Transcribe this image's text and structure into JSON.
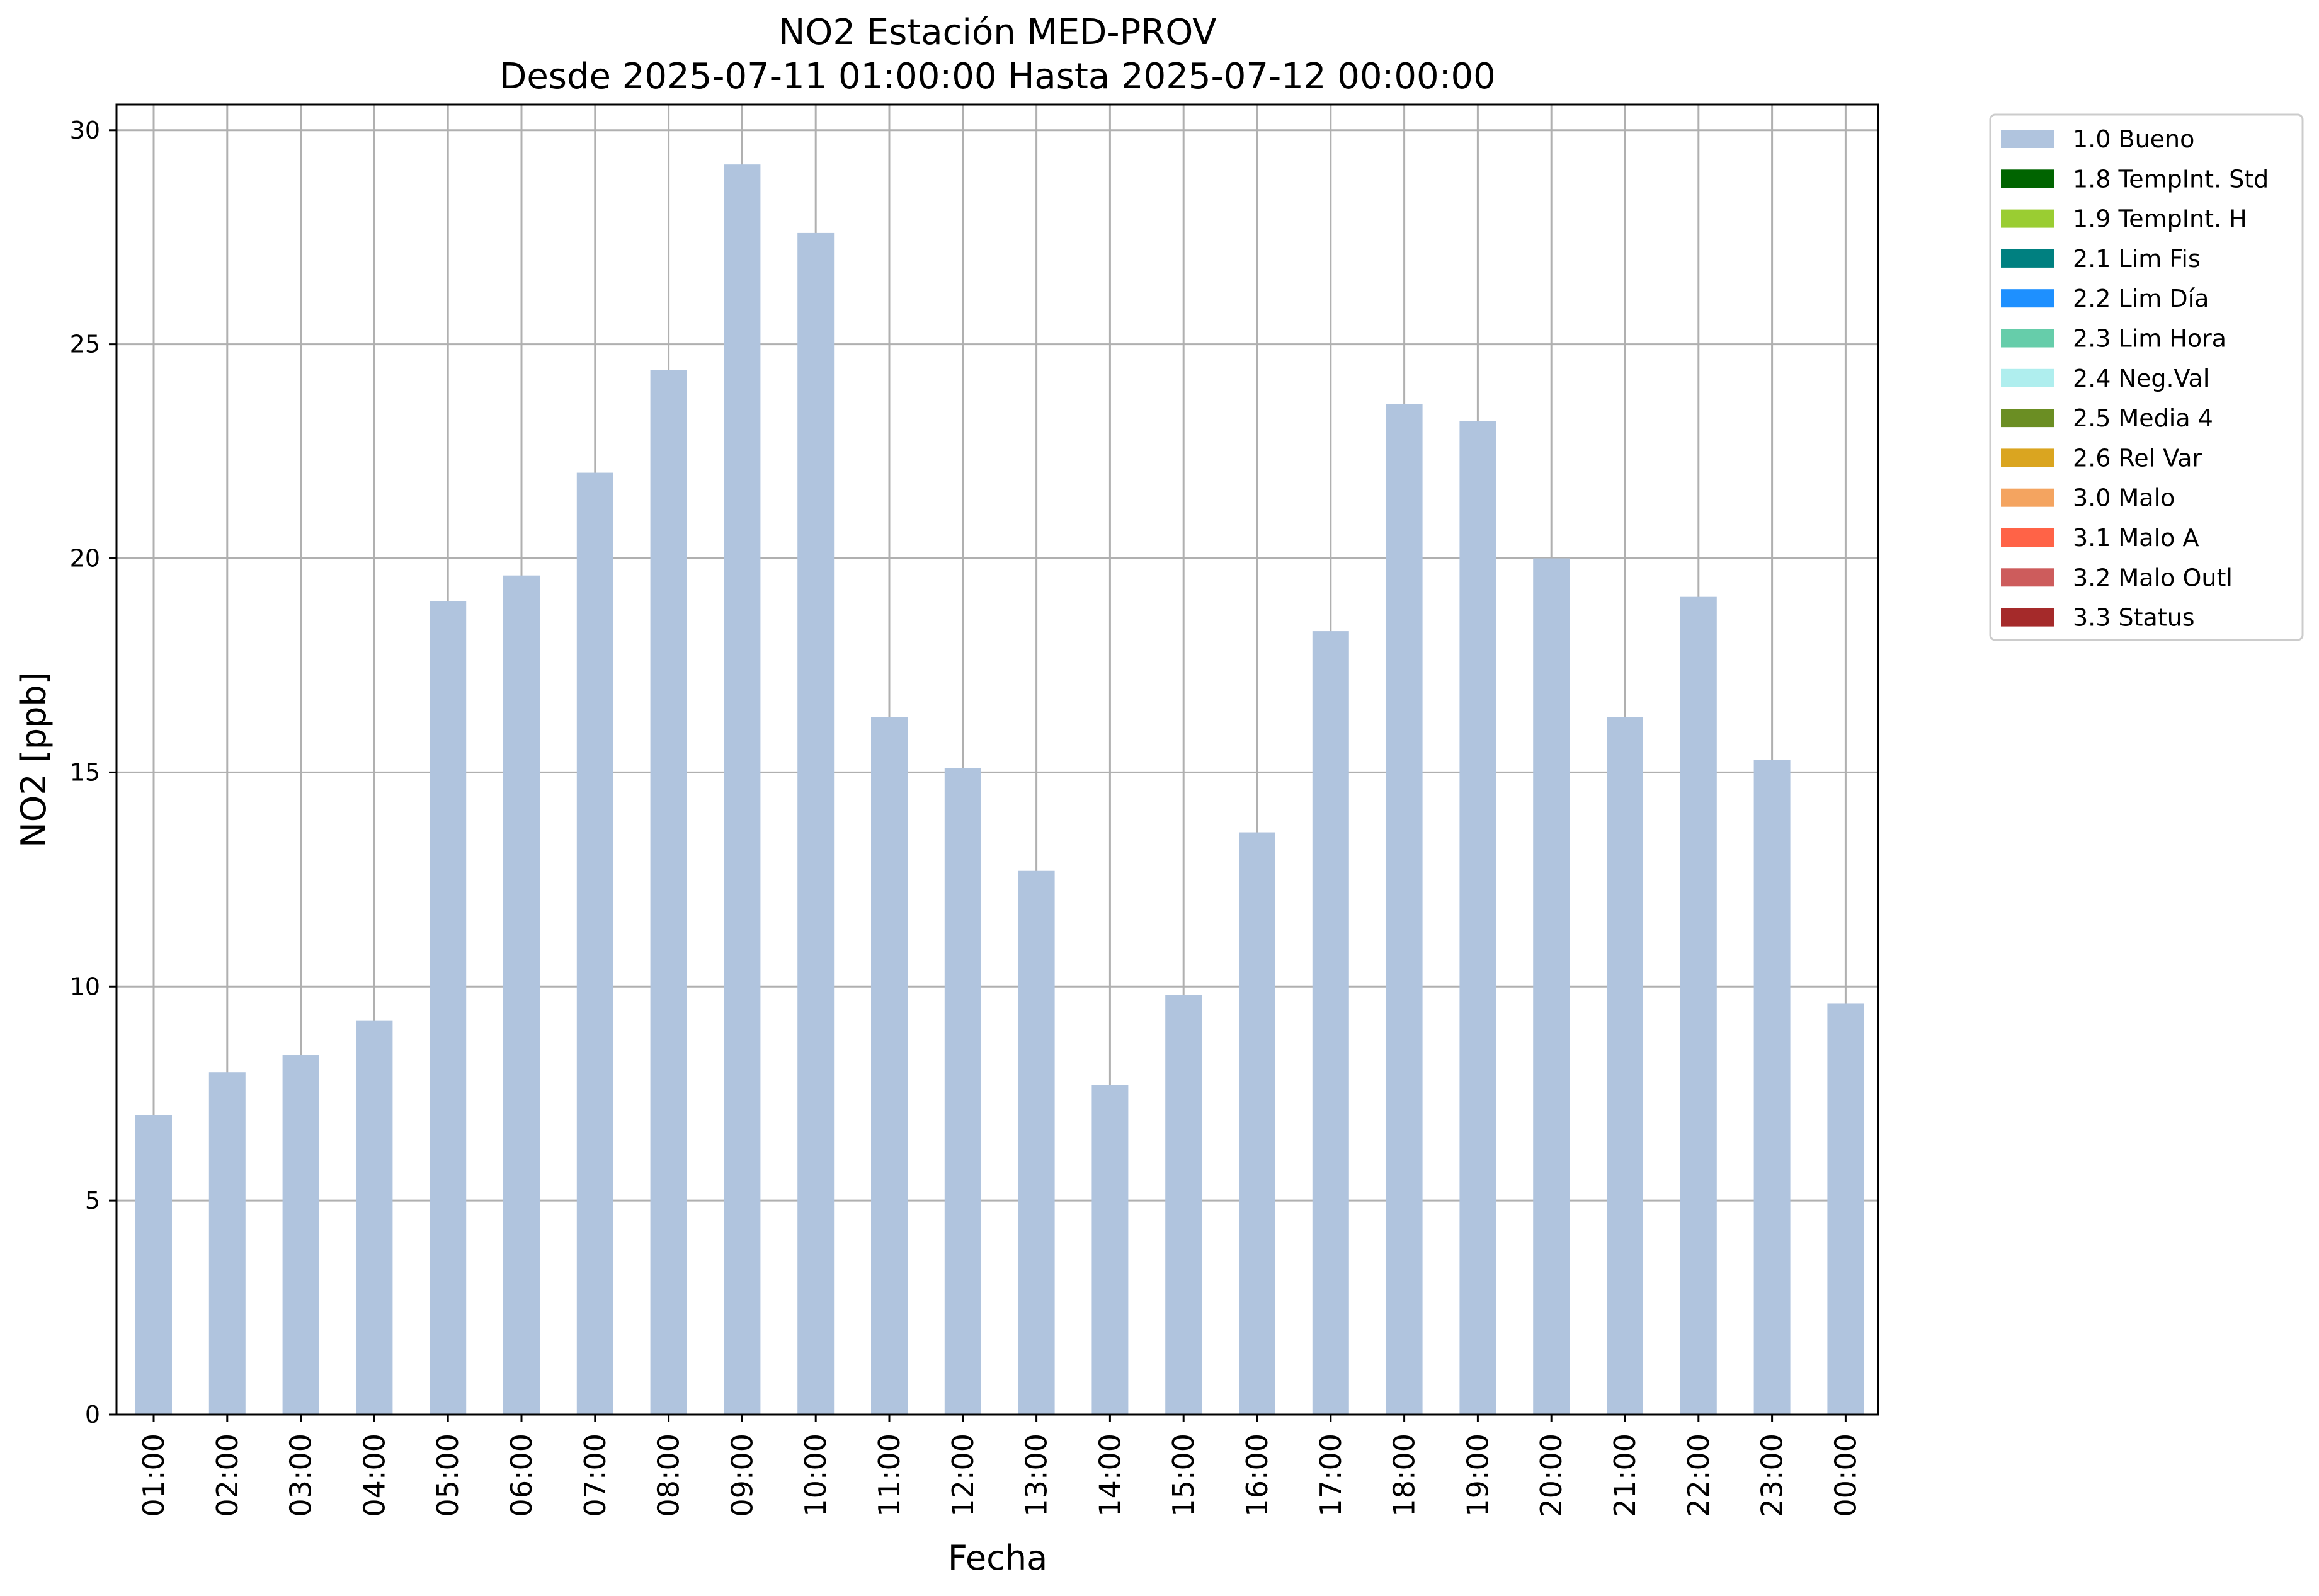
{
  "chart_data": {
    "type": "bar",
    "title": "NO2 Estación MED-PROV",
    "subtitle": "Desde 2025-07-11 01:00:00 Hasta 2025-07-12 00:00:00",
    "xlabel": "Fecha",
    "ylabel": "NO2 [ppb]",
    "ylim": [
      0,
      30.6
    ],
    "yticks": [
      "0",
      "5",
      "10",
      "15",
      "20",
      "25",
      "30"
    ],
    "grid": true,
    "legend_position": "outside-upper-right",
    "categories": [
      "01:00",
      "02:00",
      "03:00",
      "04:00",
      "05:00",
      "06:00",
      "07:00",
      "08:00",
      "09:00",
      "10:00",
      "11:00",
      "12:00",
      "13:00",
      "14:00",
      "15:00",
      "16:00",
      "17:00",
      "18:00",
      "19:00",
      "20:00",
      "21:00",
      "22:00",
      "23:00",
      "00:00"
    ],
    "series": [
      {
        "name": "1.0 Bueno",
        "color": "#b0c4de",
        "values": [
          7.0,
          8.0,
          8.4,
          9.2,
          19.0,
          19.6,
          22.0,
          24.4,
          29.2,
          27.6,
          16.3,
          15.1,
          12.7,
          7.7,
          9.8,
          13.6,
          18.3,
          23.6,
          23.2,
          20.0,
          16.3,
          19.1,
          15.3,
          9.6
        ]
      }
    ],
    "legend": [
      {
        "label": "1.0 Bueno",
        "color": "#b0c4de"
      },
      {
        "label": "1.8 TempInt. Std",
        "color": "#006400"
      },
      {
        "label": "1.9 TempInt. H",
        "color": "#9acd32"
      },
      {
        "label": "2.1 Lim Fis",
        "color": "#008080"
      },
      {
        "label": "2.2 Lim Día",
        "color": "#1e90ff"
      },
      {
        "label": "2.3 Lim Hora",
        "color": "#66cdaa"
      },
      {
        "label": "2.4 Neg.Val",
        "color": "#afeeee"
      },
      {
        "label": "2.5 Media 4",
        "color": "#6b8e23"
      },
      {
        "label": "2.6 Rel Var",
        "color": "#daa520"
      },
      {
        "label": "3.0 Malo",
        "color": "#f4a460"
      },
      {
        "label": "3.1 Malo A",
        "color": "#ff6347"
      },
      {
        "label": "3.2 Malo Outl",
        "color": "#cd5c5c"
      },
      {
        "label": "3.3 Status",
        "color": "#a52a2a"
      }
    ]
  }
}
